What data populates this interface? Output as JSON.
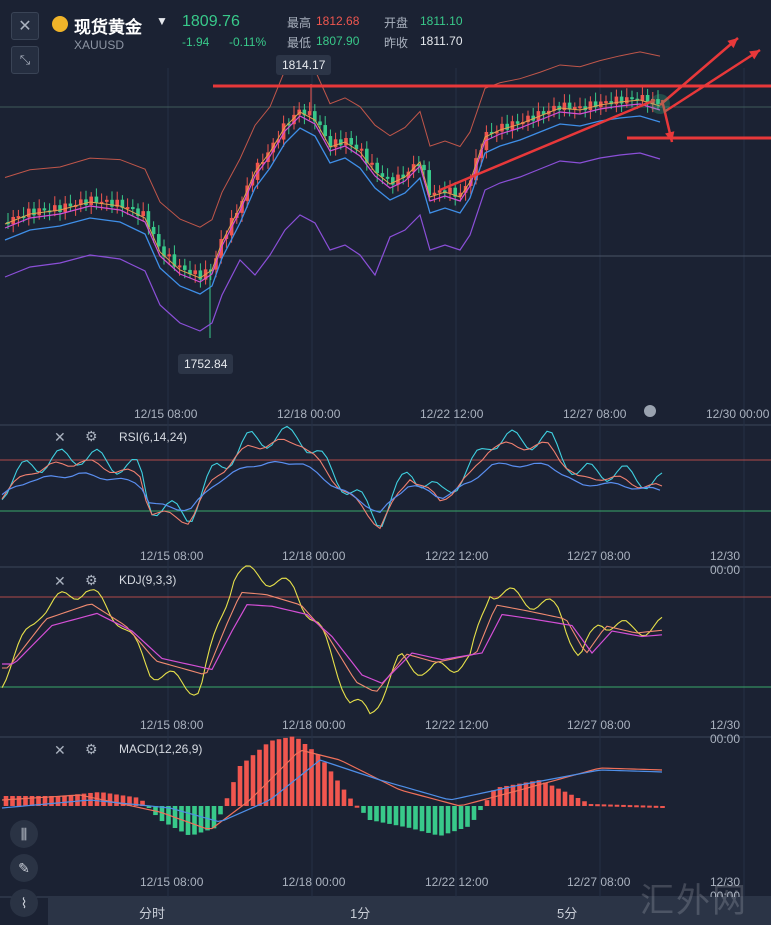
{
  "header": {
    "title": "现货黄金",
    "symbol": "XAUUSD",
    "price": "1809.76",
    "change": "-1.94",
    "change_pct": "-0.11%",
    "high_label": "最高",
    "high_value": "1812.68",
    "open_label": "开盘",
    "open_value": "1811.10",
    "low_label": "最低",
    "low_value": "1807.90",
    "prev_close_label": "昨收",
    "prev_close_value": "1811.70",
    "close_icon": "close-icon",
    "collapse_icon": "collapse-arrows-icon",
    "logo_icon": "gold-coin-icon",
    "dropdown_icon": "chevron-down-icon"
  },
  "main_chart": {
    "max_tag": "1814.17",
    "min_tag": "1752.84",
    "x_labels": [
      "12/15 08:00",
      "12/18 00:00",
      "12/22 12:00",
      "12/27 08:00",
      "12/30 00:00"
    ]
  },
  "indicators": [
    {
      "name": "RSI(6,14,24)",
      "x_labels": [
        "12/15 08:00",
        "12/18 00:00",
        "12/22 12:00",
        "12/27 08:00",
        "12/30 00:00"
      ]
    },
    {
      "name": "KDJ(9,3,3)",
      "x_labels": [
        "12/15 08:00",
        "12/18 00:00",
        "12/22 12:00",
        "12/27 08:00",
        "12/30 00:00"
      ]
    },
    {
      "name": "MACD(12,26,9)",
      "x_labels": [
        "12/15 08:00",
        "12/18 00:00",
        "12/22 12:00",
        "12/27 08:00",
        "12/30 00:00"
      ]
    }
  ],
  "bottom_bar": {
    "timeframes": [
      "分时",
      "1分",
      "5分"
    ]
  },
  "watermark": "汇外网",
  "colors": {
    "background": "#1b2233",
    "up": "#f0564f",
    "down": "#38c98a",
    "drawing": "#e8383a"
  },
  "chart_data": {
    "type": "candlestick",
    "title": "现货黄金",
    "x_ticks": [
      "12/15 08:00",
      "12/18 00:00",
      "12/22 12:00",
      "12/27 08:00",
      "12/30 00:00"
    ],
    "price_range": [
      1752.84,
      1814.17
    ],
    "last_price": 1809.76,
    "indicators": [
      "RSI(6,14,24)",
      "KDJ(9,3,3)",
      "MACD(12,26,9)"
    ]
  }
}
